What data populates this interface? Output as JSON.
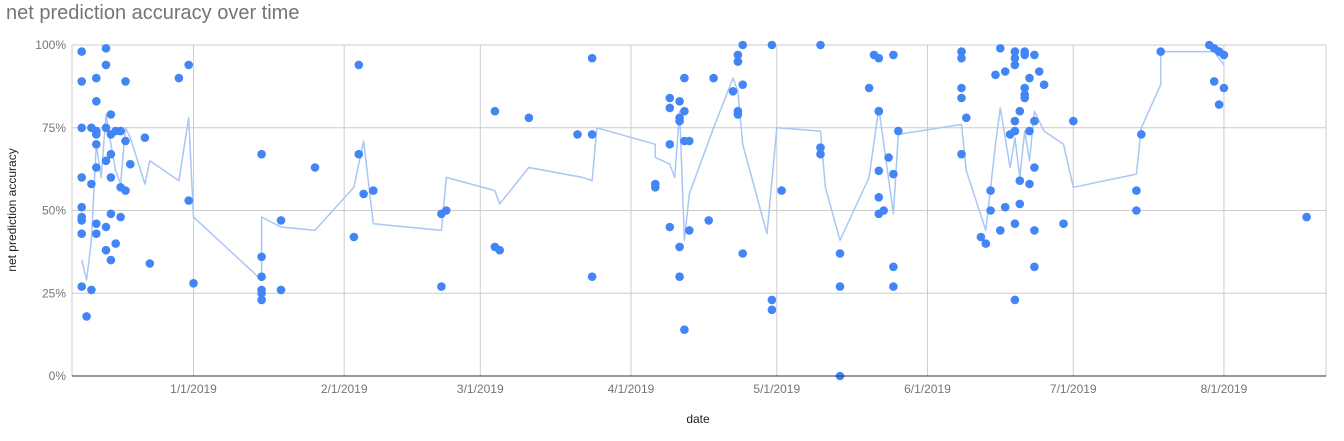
{
  "chart_data": {
    "type": "scatter",
    "title": "net prediction accuracy over time",
    "xlabel": "date",
    "ylabel": "net prediction accuracy",
    "x_axis": "date",
    "xlim": [
      "2018-12-07",
      "2019-08-22"
    ],
    "ylim": [
      0,
      1
    ],
    "y_ticks": [
      0,
      0.25,
      0.5,
      0.75,
      1
    ],
    "y_tick_labels": [
      "0%",
      "25%",
      "50%",
      "75%",
      "100%"
    ],
    "x_ticks": [
      "2019-01-01",
      "2019-02-01",
      "2019-03-01",
      "2019-04-01",
      "2019-05-01",
      "2019-06-01",
      "2019-07-01",
      "2019-08-01"
    ],
    "x_tick_labels": [
      "1/1/2019",
      "2/1/2019",
      "3/1/2019",
      "4/1/2019",
      "5/1/2019",
      "6/1/2019",
      "7/1/2019",
      "8/1/2019"
    ],
    "grid": true,
    "legend": "none",
    "colors": {
      "points": "#4285f4",
      "trend": "#a8c7f5",
      "grid": "#cccccc",
      "axis": "#333333"
    },
    "series": [
      {
        "kind": "points",
        "points": [
          [
            "2018-12-09",
            0.98
          ],
          [
            "2018-12-09",
            0.89
          ],
          [
            "2018-12-09",
            0.75
          ],
          [
            "2018-12-09",
            0.6
          ],
          [
            "2018-12-09",
            0.51
          ],
          [
            "2018-12-09",
            0.48
          ],
          [
            "2018-12-09",
            0.47
          ],
          [
            "2018-12-09",
            0.43
          ],
          [
            "2018-12-09",
            0.27
          ],
          [
            "2018-12-10",
            0.18
          ],
          [
            "2018-12-11",
            0.26
          ],
          [
            "2018-12-11",
            0.58
          ],
          [
            "2018-12-11",
            0.75
          ],
          [
            "2018-12-12",
            0.83
          ],
          [
            "2018-12-12",
            0.74
          ],
          [
            "2018-12-12",
            0.73
          ],
          [
            "2018-12-12",
            0.7
          ],
          [
            "2018-12-12",
            0.63
          ],
          [
            "2018-12-12",
            0.46
          ],
          [
            "2018-12-12",
            0.43
          ],
          [
            "2018-12-12",
            0.9
          ],
          [
            "2018-12-14",
            0.99
          ],
          [
            "2018-12-14",
            0.94
          ],
          [
            "2018-12-14",
            0.75
          ],
          [
            "2018-12-14",
            0.65
          ],
          [
            "2018-12-14",
            0.45
          ],
          [
            "2018-12-14",
            0.38
          ],
          [
            "2018-12-15",
            0.79
          ],
          [
            "2018-12-15",
            0.73
          ],
          [
            "2018-12-15",
            0.67
          ],
          [
            "2018-12-15",
            0.6
          ],
          [
            "2018-12-15",
            0.49
          ],
          [
            "2018-12-15",
            0.35
          ],
          [
            "2018-12-16",
            0.74
          ],
          [
            "2018-12-16",
            0.4
          ],
          [
            "2018-12-17",
            0.57
          ],
          [
            "2018-12-17",
            0.48
          ],
          [
            "2018-12-17",
            0.74
          ],
          [
            "2018-12-18",
            0.89
          ],
          [
            "2018-12-18",
            0.71
          ],
          [
            "2018-12-18",
            0.56
          ],
          [
            "2018-12-19",
            0.64
          ],
          [
            "2018-12-22",
            0.72
          ],
          [
            "2018-12-23",
            0.34
          ],
          [
            "2018-12-29",
            0.9
          ],
          [
            "2018-12-31",
            0.94
          ],
          [
            "2018-12-31",
            0.53
          ],
          [
            "2019-01-01",
            0.28
          ],
          [
            "2019-01-15",
            0.67
          ],
          [
            "2019-01-15",
            0.36
          ],
          [
            "2019-01-15",
            0.3
          ],
          [
            "2019-01-15",
            0.26
          ],
          [
            "2019-01-15",
            0.25
          ],
          [
            "2019-01-15",
            0.23
          ],
          [
            "2019-01-19",
            0.47
          ],
          [
            "2019-01-19",
            0.26
          ],
          [
            "2019-01-26",
            0.63
          ],
          [
            "2019-02-03",
            0.42
          ],
          [
            "2019-02-04",
            0.94
          ],
          [
            "2019-02-04",
            0.67
          ],
          [
            "2019-02-05",
            0.55
          ],
          [
            "2019-02-07",
            0.56
          ],
          [
            "2019-02-21",
            0.49
          ],
          [
            "2019-02-21",
            0.27
          ],
          [
            "2019-02-22",
            0.5
          ],
          [
            "2019-03-04",
            0.8
          ],
          [
            "2019-03-04",
            0.39
          ],
          [
            "2019-03-05",
            0.38
          ],
          [
            "2019-03-11",
            0.78
          ],
          [
            "2019-03-21",
            0.73
          ],
          [
            "2019-03-24",
            0.96
          ],
          [
            "2019-03-24",
            0.73
          ],
          [
            "2019-03-24",
            0.3
          ],
          [
            "2019-04-06",
            0.58
          ],
          [
            "2019-04-06",
            0.57
          ],
          [
            "2019-04-09",
            0.84
          ],
          [
            "2019-04-09",
            0.81
          ],
          [
            "2019-04-09",
            0.7
          ],
          [
            "2019-04-09",
            0.45
          ],
          [
            "2019-04-11",
            0.83
          ],
          [
            "2019-04-11",
            0.78
          ],
          [
            "2019-04-11",
            0.77
          ],
          [
            "2019-04-11",
            0.39
          ],
          [
            "2019-04-11",
            0.3
          ],
          [
            "2019-04-12",
            0.9
          ],
          [
            "2019-04-12",
            0.8
          ],
          [
            "2019-04-12",
            0.71
          ],
          [
            "2019-04-12",
            0.14
          ],
          [
            "2019-04-13",
            0.71
          ],
          [
            "2019-04-13",
            0.44
          ],
          [
            "2019-04-17",
            0.47
          ],
          [
            "2019-04-18",
            0.9
          ],
          [
            "2019-04-22",
            0.86
          ],
          [
            "2019-04-23",
            0.97
          ],
          [
            "2019-04-23",
            0.95
          ],
          [
            "2019-04-23",
            0.8
          ],
          [
            "2019-04-23",
            0.79
          ],
          [
            "2019-04-24",
            1.0
          ],
          [
            "2019-04-24",
            0.88
          ],
          [
            "2019-04-24",
            0.37
          ],
          [
            "2019-04-30",
            1.0
          ],
          [
            "2019-04-30",
            0.23
          ],
          [
            "2019-04-30",
            0.2
          ],
          [
            "2019-05-02",
            0.56
          ],
          [
            "2019-05-10",
            1.0
          ],
          [
            "2019-05-10",
            0.69
          ],
          [
            "2019-05-10",
            0.67
          ],
          [
            "2019-05-14",
            0.37
          ],
          [
            "2019-05-14",
            0.27
          ],
          [
            "2019-05-14",
            0.0
          ],
          [
            "2019-05-20",
            0.87
          ],
          [
            "2019-05-21",
            0.97
          ],
          [
            "2019-05-22",
            0.96
          ],
          [
            "2019-05-22",
            0.8
          ],
          [
            "2019-05-22",
            0.8
          ],
          [
            "2019-05-22",
            0.62
          ],
          [
            "2019-05-22",
            0.54
          ],
          [
            "2019-05-22",
            0.49
          ],
          [
            "2019-05-23",
            0.5
          ],
          [
            "2019-05-24",
            0.66
          ],
          [
            "2019-05-25",
            0.97
          ],
          [
            "2019-05-25",
            0.61
          ],
          [
            "2019-05-25",
            0.33
          ],
          [
            "2019-05-25",
            0.27
          ],
          [
            "2019-05-26",
            0.74
          ],
          [
            "2019-06-08",
            0.98
          ],
          [
            "2019-06-08",
            0.96
          ],
          [
            "2019-06-08",
            0.87
          ],
          [
            "2019-06-08",
            0.84
          ],
          [
            "2019-06-08",
            0.67
          ],
          [
            "2019-06-09",
            0.78
          ],
          [
            "2019-06-12",
            0.42
          ],
          [
            "2019-06-13",
            0.4
          ],
          [
            "2019-06-14",
            0.56
          ],
          [
            "2019-06-14",
            0.5
          ],
          [
            "2019-06-15",
            0.91
          ],
          [
            "2019-06-16",
            0.99
          ],
          [
            "2019-06-16",
            0.44
          ],
          [
            "2019-06-17",
            0.92
          ],
          [
            "2019-06-17",
            0.51
          ],
          [
            "2019-06-18",
            0.73
          ],
          [
            "2019-06-19",
            0.98
          ],
          [
            "2019-06-19",
            0.96
          ],
          [
            "2019-06-19",
            0.94
          ],
          [
            "2019-06-19",
            0.77
          ],
          [
            "2019-06-19",
            0.74
          ],
          [
            "2019-06-19",
            0.46
          ],
          [
            "2019-06-19",
            0.23
          ],
          [
            "2019-06-20",
            0.8
          ],
          [
            "2019-06-20",
            0.59
          ],
          [
            "2019-06-20",
            0.52
          ],
          [
            "2019-06-21",
            0.98
          ],
          [
            "2019-06-21",
            0.97
          ],
          [
            "2019-06-21",
            0.87
          ],
          [
            "2019-06-21",
            0.85
          ],
          [
            "2019-06-21",
            0.84
          ],
          [
            "2019-06-22",
            0.9
          ],
          [
            "2019-06-22",
            0.74
          ],
          [
            "2019-06-22",
            0.58
          ],
          [
            "2019-06-23",
            0.97
          ],
          [
            "2019-06-23",
            0.77
          ],
          [
            "2019-06-23",
            0.63
          ],
          [
            "2019-06-23",
            0.44
          ],
          [
            "2019-06-23",
            0.33
          ],
          [
            "2019-06-24",
            0.92
          ],
          [
            "2019-06-25",
            0.88
          ],
          [
            "2019-06-29",
            0.46
          ],
          [
            "2019-07-01",
            0.77
          ],
          [
            "2019-07-14",
            0.56
          ],
          [
            "2019-07-14",
            0.5
          ],
          [
            "2019-07-15",
            0.73
          ],
          [
            "2019-07-19",
            0.98
          ],
          [
            "2019-07-29",
            1.0
          ],
          [
            "2019-07-30",
            0.99
          ],
          [
            "2019-07-30",
            0.89
          ],
          [
            "2019-07-31",
            0.98
          ],
          [
            "2019-07-31",
            0.82
          ],
          [
            "2019-08-01",
            0.97
          ],
          [
            "2019-08-01",
            0.87
          ],
          [
            "2019-08-18",
            0.48
          ]
        ]
      },
      {
        "kind": "trend",
        "points": [
          [
            "2018-12-09",
            0.35
          ],
          [
            "2018-12-10",
            0.29
          ],
          [
            "2018-12-11",
            0.41
          ],
          [
            "2018-12-12",
            0.7
          ],
          [
            "2018-12-13",
            0.6
          ],
          [
            "2018-12-14",
            0.79
          ],
          [
            "2018-12-15",
            0.7
          ],
          [
            "2018-12-16",
            0.62
          ],
          [
            "2018-12-17",
            0.58
          ],
          [
            "2018-12-18",
            0.75
          ],
          [
            "2018-12-19",
            0.72
          ],
          [
            "2018-12-22",
            0.58
          ],
          [
            "2018-12-23",
            0.65
          ],
          [
            "2018-12-29",
            0.59
          ],
          [
            "2018-12-31",
            0.78
          ],
          [
            "2019-01-01",
            0.48
          ],
          [
            "2019-01-15",
            0.29
          ],
          [
            "2019-01-15",
            0.48
          ],
          [
            "2019-01-19",
            0.45
          ],
          [
            "2019-01-26",
            0.44
          ],
          [
            "2019-02-03",
            0.57
          ],
          [
            "2019-02-05",
            0.71
          ],
          [
            "2019-02-07",
            0.46
          ],
          [
            "2019-02-21",
            0.44
          ],
          [
            "2019-02-22",
            0.6
          ],
          [
            "2019-03-04",
            0.56
          ],
          [
            "2019-03-05",
            0.52
          ],
          [
            "2019-03-11",
            0.63
          ],
          [
            "2019-03-22",
            0.6
          ],
          [
            "2019-03-24",
            0.59
          ],
          [
            "2019-03-25",
            0.75
          ],
          [
            "2019-04-06",
            0.7
          ],
          [
            "2019-04-06",
            0.66
          ],
          [
            "2019-04-09",
            0.64
          ],
          [
            "2019-04-10",
            0.6
          ],
          [
            "2019-04-11",
            0.8
          ],
          [
            "2019-04-12",
            0.41
          ],
          [
            "2019-04-13",
            0.55
          ],
          [
            "2019-04-18",
            0.75
          ],
          [
            "2019-04-22",
            0.9
          ],
          [
            "2019-04-23",
            0.86
          ],
          [
            "2019-04-24",
            0.7
          ],
          [
            "2019-04-29",
            0.43
          ],
          [
            "2019-05-01",
            0.75
          ],
          [
            "2019-05-10",
            0.74
          ],
          [
            "2019-05-11",
            0.57
          ],
          [
            "2019-05-14",
            0.41
          ],
          [
            "2019-05-20",
            0.6
          ],
          [
            "2019-05-22",
            0.81
          ],
          [
            "2019-05-25",
            0.49
          ],
          [
            "2019-05-26",
            0.73
          ],
          [
            "2019-06-08",
            0.76
          ],
          [
            "2019-06-09",
            0.62
          ],
          [
            "2019-06-13",
            0.44
          ],
          [
            "2019-06-15",
            0.7
          ],
          [
            "2019-06-16",
            0.81
          ],
          [
            "2019-06-18",
            0.63
          ],
          [
            "2019-06-19",
            0.72
          ],
          [
            "2019-06-20",
            0.6
          ],
          [
            "2019-06-21",
            0.74
          ],
          [
            "2019-06-22",
            0.65
          ],
          [
            "2019-06-23",
            0.8
          ],
          [
            "2019-06-25",
            0.74
          ],
          [
            "2019-06-29",
            0.7
          ],
          [
            "2019-07-01",
            0.57
          ],
          [
            "2019-07-14",
            0.61
          ],
          [
            "2019-07-15",
            0.75
          ],
          [
            "2019-07-19",
            0.88
          ],
          [
            "2019-07-19",
            0.98
          ],
          [
            "2019-07-30",
            0.98
          ],
          [
            "2019-08-01",
            0.94
          ]
        ]
      }
    ]
  }
}
